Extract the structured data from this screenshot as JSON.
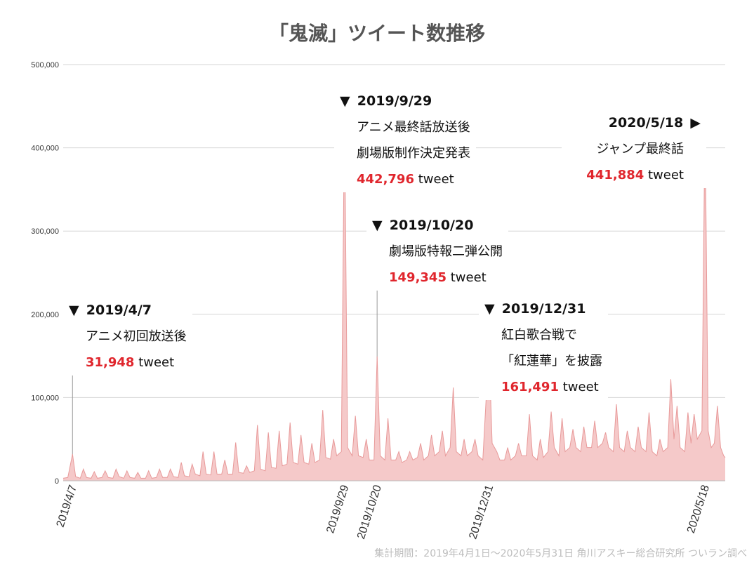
{
  "title": "「鬼滅」ツイート数推移",
  "credit": "集計期間：2019年4月1日〜2020年5月31日 角川アスキー総合研究所 ついラン調べ",
  "colors": {
    "fill": "#f5c9c9",
    "line": "#e89a9a",
    "highlight": "#e0262d",
    "grid": "#d6d6d6"
  },
  "chart_data": {
    "type": "area",
    "title": "「鬼滅」ツイート数推移",
    "x_range": [
      "2019-04-01",
      "2020-05-31"
    ],
    "ylim": [
      0,
      500000
    ],
    "y_ticks": [
      0,
      100000,
      200000,
      300000,
      400000,
      500000
    ],
    "y_tick_labels": [
      "0",
      "100,000",
      "200,000",
      "300,000",
      "400,000",
      "500,000"
    ],
    "x_tick_labels": [
      "2019/4/7",
      "2019/9/29",
      "2019/10/20",
      "2019/12/31",
      "2020/5/18"
    ],
    "x_tick_dates": [
      "2019-04-07",
      "2019-09-29",
      "2019-10-20",
      "2019-12-31",
      "2020-05-18"
    ],
    "grid": true,
    "series": [
      {
        "points": [
          [
            "2019-04-01",
            3000
          ],
          [
            "2019-04-04",
            4000
          ],
          [
            "2019-04-07",
            31948
          ],
          [
            "2019-04-09",
            5000
          ],
          [
            "2019-04-12",
            3000
          ],
          [
            "2019-04-14",
            14000
          ],
          [
            "2019-04-16",
            4000
          ],
          [
            "2019-04-19",
            3000
          ],
          [
            "2019-04-21",
            11000
          ],
          [
            "2019-04-23",
            3000
          ],
          [
            "2019-04-26",
            4000
          ],
          [
            "2019-04-28",
            12000
          ],
          [
            "2019-04-30",
            4000
          ],
          [
            "2019-05-03",
            3000
          ],
          [
            "2019-05-05",
            14000
          ],
          [
            "2019-05-07",
            5000
          ],
          [
            "2019-05-10",
            3000
          ],
          [
            "2019-05-12",
            12000
          ],
          [
            "2019-05-14",
            4000
          ],
          [
            "2019-05-17",
            3000
          ],
          [
            "2019-05-19",
            10000
          ],
          [
            "2019-05-21",
            3000
          ],
          [
            "2019-05-24",
            3000
          ],
          [
            "2019-05-26",
            12000
          ],
          [
            "2019-05-28",
            3000
          ],
          [
            "2019-05-31",
            4000
          ],
          [
            "2019-06-02",
            14000
          ],
          [
            "2019-06-04",
            4000
          ],
          [
            "2019-06-07",
            4000
          ],
          [
            "2019-06-09",
            14000
          ],
          [
            "2019-06-11",
            5000
          ],
          [
            "2019-06-14",
            4000
          ],
          [
            "2019-06-16",
            22000
          ],
          [
            "2019-06-18",
            6000
          ],
          [
            "2019-06-21",
            5000
          ],
          [
            "2019-06-23",
            20000
          ],
          [
            "2019-06-25",
            8000
          ],
          [
            "2019-06-28",
            6000
          ],
          [
            "2019-06-30",
            35000
          ],
          [
            "2019-07-02",
            8000
          ],
          [
            "2019-07-05",
            7000
          ],
          [
            "2019-07-07",
            35000
          ],
          [
            "2019-07-09",
            8000
          ],
          [
            "2019-07-12",
            8000
          ],
          [
            "2019-07-14",
            25000
          ],
          [
            "2019-07-16",
            8000
          ],
          [
            "2019-07-19",
            8000
          ],
          [
            "2019-07-21",
            46000
          ],
          [
            "2019-07-23",
            10000
          ],
          [
            "2019-07-26",
            9000
          ],
          [
            "2019-07-28",
            18000
          ],
          [
            "2019-07-30",
            10000
          ],
          [
            "2019-08-02",
            12000
          ],
          [
            "2019-08-04",
            67000
          ],
          [
            "2019-08-06",
            14000
          ],
          [
            "2019-08-09",
            12000
          ],
          [
            "2019-08-11",
            58000
          ],
          [
            "2019-08-13",
            16000
          ],
          [
            "2019-08-16",
            15000
          ],
          [
            "2019-08-18",
            60000
          ],
          [
            "2019-08-20",
            18000
          ],
          [
            "2019-08-23",
            20000
          ],
          [
            "2019-08-25",
            70000
          ],
          [
            "2019-08-27",
            22000
          ],
          [
            "2019-08-30",
            20000
          ],
          [
            "2019-09-01",
            55000
          ],
          [
            "2019-09-03",
            22000
          ],
          [
            "2019-09-06",
            20000
          ],
          [
            "2019-09-08",
            45000
          ],
          [
            "2019-09-10",
            22000
          ],
          [
            "2019-09-13",
            25000
          ],
          [
            "2019-09-15",
            85000
          ],
          [
            "2019-09-17",
            28000
          ],
          [
            "2019-09-20",
            26000
          ],
          [
            "2019-09-22",
            50000
          ],
          [
            "2019-09-24",
            30000
          ],
          [
            "2019-09-27",
            35000
          ],
          [
            "2019-09-29",
            442796
          ],
          [
            "2019-10-01",
            40000
          ],
          [
            "2019-10-04",
            30000
          ],
          [
            "2019-10-06",
            78000
          ],
          [
            "2019-10-08",
            30000
          ],
          [
            "2019-10-11",
            28000
          ],
          [
            "2019-10-13",
            50000
          ],
          [
            "2019-10-15",
            25000
          ],
          [
            "2019-10-18",
            25000
          ],
          [
            "2019-10-20",
            149345
          ],
          [
            "2019-10-22",
            30000
          ],
          [
            "2019-10-25",
            25000
          ],
          [
            "2019-10-27",
            75000
          ],
          [
            "2019-10-29",
            25000
          ],
          [
            "2019-11-01",
            25000
          ],
          [
            "2019-11-03",
            35000
          ],
          [
            "2019-11-05",
            22000
          ],
          [
            "2019-11-08",
            25000
          ],
          [
            "2019-11-10",
            35000
          ],
          [
            "2019-11-12",
            25000
          ],
          [
            "2019-11-15",
            28000
          ],
          [
            "2019-11-17",
            45000
          ],
          [
            "2019-11-19",
            25000
          ],
          [
            "2019-11-22",
            30000
          ],
          [
            "2019-11-24",
            55000
          ],
          [
            "2019-11-26",
            30000
          ],
          [
            "2019-11-29",
            35000
          ],
          [
            "2019-12-01",
            60000
          ],
          [
            "2019-12-03",
            30000
          ],
          [
            "2019-12-06",
            40000
          ],
          [
            "2019-12-08",
            112000
          ],
          [
            "2019-12-10",
            35000
          ],
          [
            "2019-12-13",
            30000
          ],
          [
            "2019-12-15",
            50000
          ],
          [
            "2019-12-17",
            30000
          ],
          [
            "2019-12-20",
            35000
          ],
          [
            "2019-12-22",
            50000
          ],
          [
            "2019-12-24",
            30000
          ],
          [
            "2019-12-27",
            25000
          ],
          [
            "2019-12-31",
            161491
          ],
          [
            "2020-01-02",
            45000
          ],
          [
            "2020-01-05",
            35000
          ],
          [
            "2020-01-07",
            25000
          ],
          [
            "2020-01-10",
            25000
          ],
          [
            "2020-01-12",
            40000
          ],
          [
            "2020-01-14",
            25000
          ],
          [
            "2020-01-17",
            30000
          ],
          [
            "2020-01-19",
            45000
          ],
          [
            "2020-01-21",
            30000
          ],
          [
            "2020-01-24",
            30000
          ],
          [
            "2020-01-26",
            80000
          ],
          [
            "2020-01-28",
            30000
          ],
          [
            "2020-01-31",
            25000
          ],
          [
            "2020-02-02",
            50000
          ],
          [
            "2020-02-04",
            28000
          ],
          [
            "2020-02-07",
            35000
          ],
          [
            "2020-02-09",
            83000
          ],
          [
            "2020-02-11",
            40000
          ],
          [
            "2020-02-14",
            30000
          ],
          [
            "2020-02-16",
            75000
          ],
          [
            "2020-02-18",
            35000
          ],
          [
            "2020-02-21",
            40000
          ],
          [
            "2020-02-23",
            62000
          ],
          [
            "2020-02-25",
            40000
          ],
          [
            "2020-02-28",
            35000
          ],
          [
            "2020-03-01",
            65000
          ],
          [
            "2020-03-03",
            40000
          ],
          [
            "2020-03-06",
            40000
          ],
          [
            "2020-03-08",
            72000
          ],
          [
            "2020-03-10",
            40000
          ],
          [
            "2020-03-13",
            45000
          ],
          [
            "2020-03-15",
            58000
          ],
          [
            "2020-03-17",
            40000
          ],
          [
            "2020-03-20",
            35000
          ],
          [
            "2020-03-22",
            92000
          ],
          [
            "2020-03-24",
            40000
          ],
          [
            "2020-03-27",
            35000
          ],
          [
            "2020-03-29",
            60000
          ],
          [
            "2020-03-31",
            40000
          ],
          [
            "2020-04-03",
            35000
          ],
          [
            "2020-04-05",
            65000
          ],
          [
            "2020-04-07",
            40000
          ],
          [
            "2020-04-10",
            35000
          ],
          [
            "2020-04-12",
            82000
          ],
          [
            "2020-04-14",
            35000
          ],
          [
            "2020-04-17",
            30000
          ],
          [
            "2020-04-19",
            50000
          ],
          [
            "2020-04-21",
            35000
          ],
          [
            "2020-04-24",
            40000
          ],
          [
            "2020-04-26",
            122000
          ],
          [
            "2020-04-28",
            50000
          ],
          [
            "2020-04-30",
            90000
          ],
          [
            "2020-05-02",
            40000
          ],
          [
            "2020-05-05",
            35000
          ],
          [
            "2020-05-07",
            82000
          ],
          [
            "2020-05-09",
            45000
          ],
          [
            "2020-05-11",
            80000
          ],
          [
            "2020-05-13",
            50000
          ],
          [
            "2020-05-16",
            60000
          ],
          [
            "2020-05-18",
            441884
          ],
          [
            "2020-05-20",
            60000
          ],
          [
            "2020-05-22",
            40000
          ],
          [
            "2020-05-24",
            45000
          ],
          [
            "2020-05-26",
            90000
          ],
          [
            "2020-05-28",
            40000
          ],
          [
            "2020-05-30",
            30000
          ],
          [
            "2020-05-31",
            28000
          ]
        ]
      }
    ],
    "annotations": [
      {
        "date_label": "2019/4/7",
        "marker": "▼",
        "lines": [
          "アニメ初回放送後"
        ],
        "value_text": "31,948",
        "unit": "tweet"
      },
      {
        "date_label": "2019/9/29",
        "marker": "▼",
        "lines": [
          "アニメ最終話放送後",
          "劇場版制作決定発表"
        ],
        "value_text": "442,796",
        "unit": "tweet"
      },
      {
        "date_label": "2019/10/20",
        "marker": "▼",
        "lines": [
          "劇場版特報二弾公開"
        ],
        "value_text": "149,345",
        "unit": "tweet"
      },
      {
        "date_label": "2019/12/31",
        "marker": "▼",
        "lines": [
          "紅白歌合戦で",
          "「紅蓮華」を披露"
        ],
        "value_text": "161,491",
        "unit": "tweet"
      },
      {
        "date_label": "2020/5/18",
        "marker": "▶",
        "lines": [
          "ジャンプ最終話"
        ],
        "value_text": "441,884",
        "unit": "tweet"
      }
    ]
  }
}
